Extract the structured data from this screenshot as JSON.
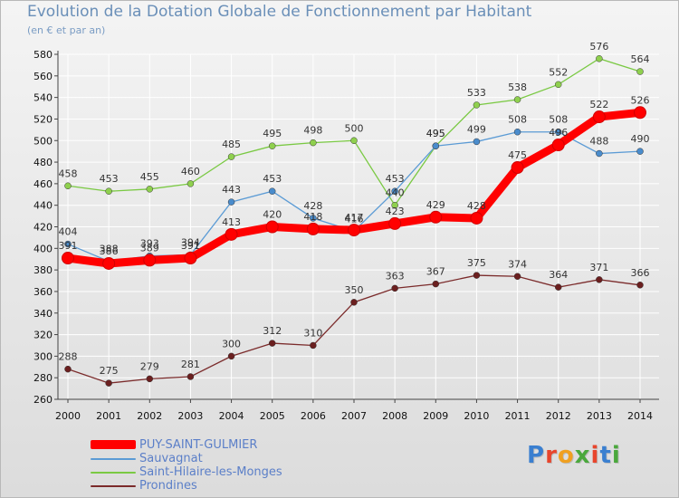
{
  "title": "Evolution de la Dotation Globale de Fonctionnement par Habitant",
  "subtitle": "(en € et par an)",
  "logo": {
    "text": "Proxiti",
    "colors": [
      "#3a7fd0",
      "#e8452c",
      "#f0a020",
      "#4aa83c",
      "#e8452c",
      "#3a7fd0",
      "#4aa83c"
    ]
  },
  "chart_data": {
    "type": "line",
    "title": "Evolution de la Dotation Globale de Fonctionnement par Habitant",
    "subtitle": "(en € et par an)",
    "xlabel": "",
    "ylabel": "",
    "x": [
      2000,
      2001,
      2002,
      2003,
      2004,
      2005,
      2006,
      2007,
      2008,
      2009,
      2010,
      2011,
      2012,
      2013,
      2014
    ],
    "ylim": [
      260,
      580
    ],
    "yticks": [
      260,
      280,
      300,
      320,
      340,
      360,
      380,
      400,
      420,
      440,
      460,
      480,
      500,
      520,
      540,
      560,
      580
    ],
    "grid": true,
    "legend_position": "bottom-left",
    "series": [
      {
        "name": "Saint-Hilaire-les-Monges",
        "color": "#7ac943",
        "marker": "#8fd04e",
        "emphasis": false,
        "values": [
          458,
          453,
          455,
          460,
          485,
          495,
          498,
          500,
          440,
          495,
          533,
          538,
          552,
          576,
          564
        ]
      },
      {
        "name": "Sauvagnat",
        "color": "#5b9bd5",
        "marker": "#4a8ccc",
        "emphasis": false,
        "values": [
          404,
          388,
          393,
          394,
          443,
          453,
          428,
          416,
          453,
          495,
          499,
          508,
          508,
          488,
          490
        ]
      },
      {
        "name": "Prondines",
        "color": "#7b2b2b",
        "marker": "#6b1f1f",
        "emphasis": false,
        "values": [
          288,
          275,
          279,
          281,
          300,
          312,
          310,
          350,
          363,
          367,
          375,
          374,
          364,
          371,
          366
        ]
      },
      {
        "name": "PUY-SAINT-GULMIER",
        "color": "#ff0000",
        "marker": "#ff0000",
        "emphasis": true,
        "values": [
          391,
          386,
          389,
          391,
          413,
          420,
          418,
          417,
          423,
          429,
          428,
          475,
          496,
          522,
          526
        ]
      }
    ],
    "legend_order": [
      "PUY-SAINT-GULMIER",
      "Sauvagnat",
      "Saint-Hilaire-les-Monges",
      "Prondines"
    ]
  }
}
